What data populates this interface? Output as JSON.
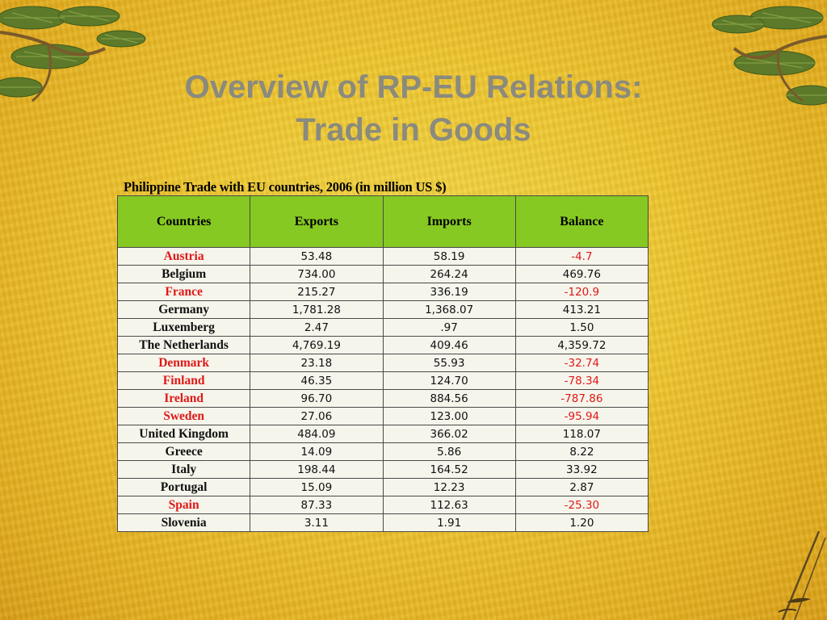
{
  "slide": {
    "title_line1": "Overview of RP-EU Relations:",
    "title_line2": "Trade in Goods",
    "caption": "Philippine Trade with EU countries, 2006 (in million US $)"
  },
  "table": {
    "headers": [
      "Countries",
      "Exports",
      "Imports",
      "Balance"
    ],
    "rows": [
      {
        "country": "Austria",
        "exports": "53.48",
        "imports": "58.19",
        "balance": "-4.7",
        "negative": true
      },
      {
        "country": "Belgium",
        "exports": "734.00",
        "imports": "264.24",
        "balance": "469.76",
        "negative": false
      },
      {
        "country": "France",
        "exports": "215.27",
        "imports": "336.19",
        "balance": "-120.9",
        "negative": true
      },
      {
        "country": "Germany",
        "exports": "1,781.28",
        "imports": "1,368.07",
        "balance": "413.21",
        "negative": false
      },
      {
        "country": "Luxemberg",
        "exports": "2.47",
        "imports": ".97",
        "balance": "1.50",
        "negative": false
      },
      {
        "country": "The Netherlands",
        "exports": "4,769.19",
        "imports": "409.46",
        "balance": "4,359.72",
        "negative": false
      },
      {
        "country": "Denmark",
        "exports": "23.18",
        "imports": "55.93",
        "balance": "-32.74",
        "negative": true
      },
      {
        "country": "Finland",
        "exports": "46.35",
        "imports": "124.70",
        "balance": "-78.34",
        "negative": true
      },
      {
        "country": "Ireland",
        "exports": "96.70",
        "imports": "884.56",
        "balance": "-787.86",
        "negative": true
      },
      {
        "country": "Sweden",
        "exports": "27.06",
        "imports": "123.00",
        "balance": "-95.94",
        "negative": true
      },
      {
        "country": "United Kingdom",
        "exports": "484.09",
        "imports": "366.02",
        "balance": "118.07",
        "negative": false
      },
      {
        "country": "Greece",
        "exports": "14.09",
        "imports": "5.86",
        "balance": "8.22",
        "negative": false
      },
      {
        "country": "Italy",
        "exports": "198.44",
        "imports": "164.52",
        "balance": "33.92",
        "negative": false
      },
      {
        "country": "Portugal",
        "exports": "15.09",
        "imports": "12.23",
        "balance": "2.87",
        "negative": false
      },
      {
        "country": "Spain",
        "exports": "87.33",
        "imports": "112.63",
        "balance": "-25.30",
        "negative": true
      },
      {
        "country": "Slovenia",
        "exports": "3.11",
        "imports": "1.91",
        "balance": "1.20",
        "negative": false
      }
    ]
  },
  "colors": {
    "title": "#8a8a7e",
    "header_bg": "#86c922",
    "cell_bg": "#f5f5ec",
    "negative": "#e01818",
    "background": "#eec52e"
  },
  "icons": [
    "pine-branch-decoration",
    "bamboo-decoration"
  ]
}
